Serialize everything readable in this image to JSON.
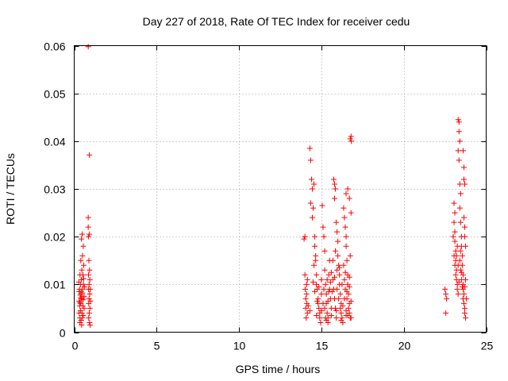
{
  "chart_data": {
    "type": "scatter",
    "title": "Day 227 of 2018, Rate Of TEC Index for receiver cedu",
    "xlabel": "GPS time / hours",
    "ylabel": "ROTI / TECUs",
    "xlim": [
      0,
      25
    ],
    "ylim": [
      0,
      0.06
    ],
    "xticks": [
      0,
      5,
      10,
      15,
      20,
      25
    ],
    "xtick_labels": [
      "0",
      "5",
      "10",
      "15",
      "20",
      "25"
    ],
    "yticks": [
      0,
      0.01,
      0.02,
      0.03,
      0.04,
      0.05,
      0.06
    ],
    "ytick_labels": [
      "0",
      "0.01",
      "0.02",
      "0.03",
      "0.04",
      "0.05",
      "0.06"
    ],
    "grid": true,
    "marker": "+",
    "color": "#ff0000",
    "series": [
      {
        "name": "ROTI",
        "points": [
          [
            0.85,
            0.0598
          ],
          [
            0.92,
            0.0371
          ],
          [
            0.3,
            0.004
          ],
          [
            0.3,
            0.0065
          ],
          [
            0.32,
            0.009
          ],
          [
            0.33,
            0.0055
          ],
          [
            0.35,
            0.012
          ],
          [
            0.35,
            0.003
          ],
          [
            0.36,
            0.0078
          ],
          [
            0.38,
            0.01
          ],
          [
            0.38,
            0.0045
          ],
          [
            0.4,
            0.015
          ],
          [
            0.4,
            0.006
          ],
          [
            0.42,
            0.0085
          ],
          [
            0.42,
            0.0025
          ],
          [
            0.43,
            0.011
          ],
          [
            0.44,
            0.0195
          ],
          [
            0.45,
            0.007
          ],
          [
            0.46,
            0.013
          ],
          [
            0.47,
            0.004
          ],
          [
            0.48,
            0.0205
          ],
          [
            0.5,
            0.009
          ],
          [
            0.5,
            0.016
          ],
          [
            0.52,
            0.0055
          ],
          [
            0.53,
            0.012
          ],
          [
            0.55,
            0.018
          ],
          [
            0.55,
            0.0035
          ],
          [
            0.56,
            0.01
          ],
          [
            0.58,
            0.014
          ],
          [
            0.6,
            0.0075
          ],
          [
            0.6,
            0.005
          ],
          [
            0.62,
            0.0095
          ],
          [
            0.35,
            0.002
          ],
          [
            0.45,
            0.0015
          ],
          [
            0.5,
            0.003
          ],
          [
            0.28,
            0.0105
          ],
          [
            0.3,
            0.0085
          ],
          [
            0.34,
            0.0062
          ],
          [
            0.41,
            0.0072
          ],
          [
            0.49,
            0.0082
          ],
          [
            0.54,
            0.0068
          ],
          [
            0.57,
            0.0112
          ],
          [
            0.85,
            0.024
          ],
          [
            0.85,
            0.022
          ],
          [
            0.86,
            0.02
          ],
          [
            0.87,
            0.012
          ],
          [
            0.87,
            0.009
          ],
          [
            0.88,
            0.006
          ],
          [
            0.88,
            0.003
          ],
          [
            0.89,
            0.015
          ],
          [
            0.9,
            0.01
          ],
          [
            0.9,
            0.007
          ],
          [
            0.91,
            0.004
          ],
          [
            0.92,
            0.0205
          ],
          [
            0.93,
            0.013
          ],
          [
            0.93,
            0.002
          ],
          [
            0.94,
            0.008
          ],
          [
            0.95,
            0.011
          ],
          [
            0.95,
            0.005
          ],
          [
            0.96,
            0.0015
          ],
          [
            0.97,
            0.009
          ],
          [
            0.98,
            0.0065
          ],
          [
            13.95,
            0.0195
          ],
          [
            14.0,
            0.02
          ],
          [
            14.0,
            0.012
          ],
          [
            14.02,
            0.009
          ],
          [
            14.05,
            0.007
          ],
          [
            14.05,
            0.005
          ],
          [
            14.08,
            0.003
          ],
          [
            14.1,
            0.01
          ],
          [
            14.1,
            0.008
          ],
          [
            14.12,
            0.006
          ],
          [
            14.15,
            0.004
          ],
          [
            14.15,
            0.011
          ],
          [
            14.3,
            0.0385
          ],
          [
            14.35,
            0.036
          ],
          [
            14.4,
            0.032
          ],
          [
            14.45,
            0.03
          ],
          [
            14.35,
            0.027
          ],
          [
            14.5,
            0.026
          ],
          [
            14.45,
            0.024
          ],
          [
            14.55,
            0.031
          ],
          [
            14.6,
            0.02
          ],
          [
            14.6,
            0.018
          ],
          [
            14.65,
            0.015
          ],
          [
            14.7,
            0.012
          ],
          [
            14.7,
            0.01
          ],
          [
            14.75,
            0.009
          ],
          [
            14.8,
            0.007
          ],
          [
            14.8,
            0.006
          ],
          [
            14.85,
            0.005
          ],
          [
            14.9,
            0.004
          ],
          [
            14.9,
            0.003
          ],
          [
            14.95,
            0.002
          ],
          [
            15.0,
            0.008
          ],
          [
            15.0,
            0.011
          ],
          [
            14.55,
            0.014
          ],
          [
            14.65,
            0.016
          ],
          [
            14.5,
            0.0105
          ],
          [
            14.6,
            0.0085
          ],
          [
            14.75,
            0.0065
          ],
          [
            14.85,
            0.0095
          ],
          [
            15.05,
            0.0265
          ],
          [
            15.1,
            0.022
          ],
          [
            15.15,
            0.02
          ],
          [
            15.2,
            0.017
          ],
          [
            15.2,
            0.013
          ],
          [
            15.25,
            0.01
          ],
          [
            15.3,
            0.008
          ],
          [
            15.3,
            0.006
          ],
          [
            15.35,
            0.004
          ],
          [
            15.4,
            0.003
          ],
          [
            15.4,
            0.002
          ],
          [
            15.45,
            0.012
          ],
          [
            15.5,
            0.015
          ],
          [
            15.5,
            0.009
          ],
          [
            15.55,
            0.007
          ],
          [
            15.6,
            0.005
          ],
          [
            15.1,
            0.006
          ],
          [
            15.2,
            0.005
          ],
          [
            15.25,
            0.003
          ],
          [
            15.35,
            0.011
          ],
          [
            15.45,
            0.0085
          ],
          [
            15.55,
            0.0105
          ],
          [
            15.6,
            0.0125
          ],
          [
            15.15,
            0.009
          ],
          [
            15.75,
            0.032
          ],
          [
            15.8,
            0.031
          ],
          [
            15.85,
            0.03
          ],
          [
            15.8,
            0.028
          ],
          [
            15.9,
            0.023
          ],
          [
            15.95,
            0.021
          ],
          [
            16.0,
            0.019
          ],
          [
            16.0,
            0.016
          ],
          [
            16.05,
            0.014
          ],
          [
            16.1,
            0.012
          ],
          [
            16.1,
            0.01
          ],
          [
            16.15,
            0.008
          ],
          [
            16.2,
            0.006
          ],
          [
            16.2,
            0.004
          ],
          [
            16.25,
            0.003
          ],
          [
            16.3,
            0.002
          ],
          [
            15.7,
            0.011
          ],
          [
            15.75,
            0.009
          ],
          [
            15.8,
            0.007
          ],
          [
            15.85,
            0.005
          ],
          [
            15.9,
            0.003
          ],
          [
            15.95,
            0.013
          ],
          [
            16.05,
            0.007
          ],
          [
            16.15,
            0.005
          ],
          [
            15.7,
            0.015
          ],
          [
            15.85,
            0.017
          ],
          [
            15.95,
            0.009
          ],
          [
            16.25,
            0.01
          ],
          [
            16.35,
            0.026
          ],
          [
            16.4,
            0.024
          ],
          [
            16.45,
            0.022
          ],
          [
            16.5,
            0.02
          ],
          [
            16.5,
            0.018
          ],
          [
            16.55,
            0.015
          ],
          [
            16.6,
            0.012
          ],
          [
            16.6,
            0.01
          ],
          [
            16.65,
            0.008
          ],
          [
            16.7,
            0.006
          ],
          [
            16.7,
            0.004
          ],
          [
            16.75,
            0.003
          ],
          [
            16.4,
            0.011
          ],
          [
            16.45,
            0.009
          ],
          [
            16.55,
            0.007
          ],
          [
            16.65,
            0.005
          ],
          [
            16.75,
            0.0405
          ],
          [
            16.8,
            0.041
          ],
          [
            16.82,
            0.04
          ],
          [
            16.7,
            0.028
          ],
          [
            16.8,
            0.025
          ],
          [
            16.75,
            0.016
          ],
          [
            16.6,
            0.03
          ],
          [
            16.5,
            0.029
          ],
          [
            16.35,
            0.014
          ],
          [
            16.4,
            0.007
          ],
          [
            16.5,
            0.0045
          ],
          [
            16.6,
            0.0035
          ],
          [
            16.7,
            0.0095
          ],
          [
            16.8,
            0.0065
          ],
          [
            16.45,
            0.0125
          ],
          [
            16.55,
            0.0085
          ],
          [
            14.7,
            0.0035
          ],
          [
            15.0,
            0.0045
          ],
          [
            15.3,
            0.0025
          ],
          [
            15.6,
            0.0035
          ],
          [
            15.9,
            0.0045
          ],
          [
            16.2,
            0.0025
          ],
          [
            16.5,
            0.0035
          ],
          [
            16.8,
            0.003
          ],
          [
            14.2,
            0.0055
          ],
          [
            14.3,
            0.0045
          ],
          [
            15.4,
            0.0065
          ],
          [
            16.3,
            0.0055
          ],
          [
            15.8,
            0.0115
          ],
          [
            16.1,
            0.0135
          ],
          [
            15.65,
            0.0085
          ],
          [
            16.7,
            0.0115
          ],
          [
            22.5,
            0.009
          ],
          [
            22.55,
            0.008
          ],
          [
            22.6,
            0.007
          ],
          [
            22.55,
            0.004
          ],
          [
            23.05,
            0.023
          ],
          [
            23.1,
            0.021
          ],
          [
            23.1,
            0.019
          ],
          [
            23.15,
            0.017
          ],
          [
            23.15,
            0.015
          ],
          [
            23.2,
            0.013
          ],
          [
            23.2,
            0.011
          ],
          [
            23.25,
            0.01
          ],
          [
            23.25,
            0.009
          ],
          [
            23.3,
            0.008
          ],
          [
            23.05,
            0.027
          ],
          [
            23.1,
            0.025
          ],
          [
            23.15,
            0.012
          ],
          [
            23.2,
            0.016
          ],
          [
            23.25,
            0.018
          ],
          [
            23.3,
            0.014
          ],
          [
            23.3,
            0.0445
          ],
          [
            23.35,
            0.044
          ],
          [
            23.35,
            0.042
          ],
          [
            23.4,
            0.04
          ],
          [
            23.3,
            0.038
          ],
          [
            23.35,
            0.036
          ],
          [
            23.4,
            0.031
          ],
          [
            23.45,
            0.029
          ],
          [
            23.4,
            0.026
          ],
          [
            23.45,
            0.023
          ],
          [
            23.5,
            0.02
          ],
          [
            23.5,
            0.018
          ],
          [
            23.55,
            0.016
          ],
          [
            23.55,
            0.014
          ],
          [
            23.6,
            0.012
          ],
          [
            23.6,
            0.01
          ],
          [
            23.65,
            0.0345
          ],
          [
            23.65,
            0.032
          ],
          [
            23.7,
            0.031
          ],
          [
            23.6,
            0.038
          ],
          [
            23.65,
            0.024
          ],
          [
            23.7,
            0.022
          ],
          [
            23.7,
            0.02
          ],
          [
            23.75,
            0.018
          ],
          [
            23.6,
            0.009
          ],
          [
            23.65,
            0.008
          ],
          [
            23.65,
            0.006
          ],
          [
            23.7,
            0.005
          ],
          [
            23.7,
            0.004
          ],
          [
            23.75,
            0.003
          ],
          [
            23.75,
            0.011
          ],
          [
            23.8,
            0.007
          ],
          [
            23.4,
            0.015
          ],
          [
            23.45,
            0.013
          ],
          [
            23.5,
            0.011
          ],
          [
            23.55,
            0.0095
          ],
          [
            23.45,
            0.017
          ],
          [
            23.5,
            0.0125
          ],
          [
            23.6,
            0.007
          ],
          [
            23.7,
            0.0095
          ],
          [
            23.0,
            0.02
          ],
          [
            23.05,
            0.016
          ],
          [
            23.1,
            0.014
          ],
          [
            23.35,
            0.0105
          ]
        ]
      }
    ]
  }
}
